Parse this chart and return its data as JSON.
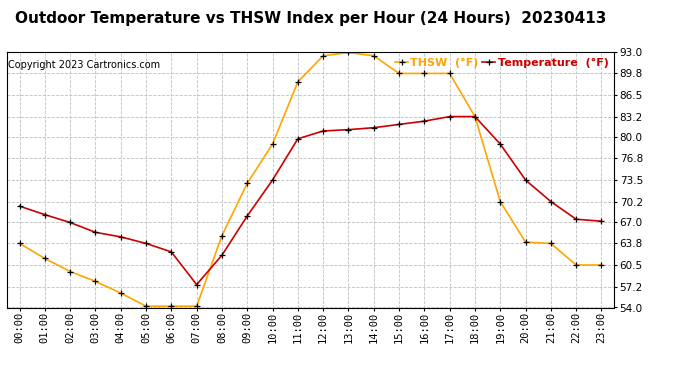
{
  "title": "Outdoor Temperature vs THSW Index per Hour (24 Hours)  20230413",
  "copyright": "Copyright 2023 Cartronics.com",
  "legend_thsw": "THSW  (°F)",
  "legend_temp": "Temperature  (°F)",
  "hours": [
    "00:00",
    "01:00",
    "02:00",
    "03:00",
    "04:00",
    "05:00",
    "06:00",
    "07:00",
    "08:00",
    "09:00",
    "10:00",
    "11:00",
    "12:00",
    "13:00",
    "14:00",
    "15:00",
    "16:00",
    "17:00",
    "18:00",
    "19:00",
    "20:00",
    "21:00",
    "22:00",
    "23:00"
  ],
  "temperature": [
    69.5,
    68.2,
    67.0,
    65.5,
    64.8,
    63.8,
    62.5,
    57.5,
    62.0,
    68.0,
    73.5,
    79.8,
    81.0,
    81.2,
    81.5,
    82.0,
    82.5,
    83.2,
    83.2,
    79.0,
    73.5,
    70.2,
    67.5,
    67.2
  ],
  "thsw": [
    63.8,
    61.5,
    59.5,
    58.0,
    56.2,
    54.2,
    54.2,
    54.2,
    65.0,
    73.0,
    79.0,
    88.5,
    92.5,
    93.0,
    92.5,
    89.8,
    89.8,
    89.8,
    83.2,
    70.2,
    64.0,
    63.8,
    60.5,
    60.5
  ],
  "thsw_color": "#FFA500",
  "temp_color": "#CC0000",
  "marker_color": "#000000",
  "bg_color": "#ffffff",
  "grid_color": "#c0c0c0",
  "ylim_min": 54.0,
  "ylim_max": 93.0,
  "yticks": [
    54.0,
    57.2,
    60.5,
    63.8,
    67.0,
    70.2,
    73.5,
    76.8,
    80.0,
    83.2,
    86.5,
    89.8,
    93.0
  ],
  "title_fontsize": 11,
  "label_fontsize": 7.5,
  "copyright_fontsize": 7,
  "legend_fontsize": 8
}
